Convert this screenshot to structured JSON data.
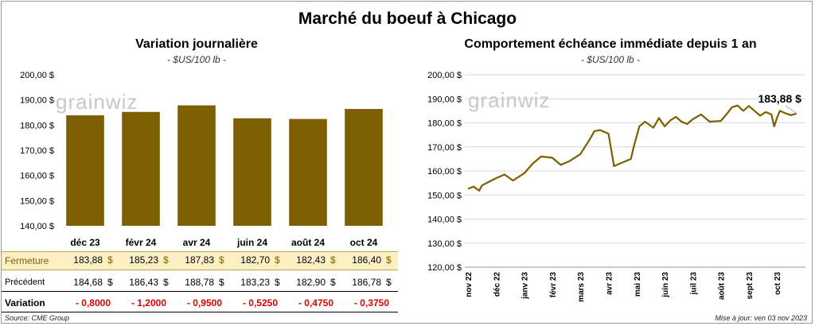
{
  "title": "Marché du boeuf à Chicago",
  "left_panel": {
    "title": "Variation  journalière",
    "subtitle": "- $US/100 lb -",
    "watermark": "grainwiz"
  },
  "right_panel": {
    "title": "Comportement  échéance immédiate depuis 1 an",
    "subtitle": "- $US/100 lb -",
    "watermark": "grainwiz",
    "last_label": "183,88 $"
  },
  "table": {
    "rows": [
      {
        "label": "Fermeture",
        "values": [
          "183,88",
          "185,23",
          "187,83",
          "182,70",
          "182,43",
          "186,40"
        ],
        "unit": "$"
      },
      {
        "label": "Précédent",
        "values": [
          "184,68",
          "186,43",
          "188,78",
          "183,23",
          "182,90",
          "186,78"
        ],
        "unit": "$"
      },
      {
        "label": "Variation",
        "values": [
          "- 0,8000",
          "- 1,2000",
          "- 0,9500",
          "- 0,5250",
          "- 0,4750",
          "- 0,3750"
        ],
        "unit": ""
      }
    ]
  },
  "footer": {
    "source": "Source: CME Group",
    "updated": "Mise à jour: ven 03 nov 2023"
  },
  "colors": {
    "bar": "#7d5e00",
    "line": "#7d5e00",
    "table_highlight": "#fdf0c4",
    "negative": "#e00000",
    "grid": "#d9d9d9"
  },
  "chart_data": [
    {
      "type": "bar",
      "categories": [
        "déc 23",
        "févr 24",
        "avr 24",
        "juin 24",
        "août 24",
        "oct 24"
      ],
      "values": [
        183.88,
        185.23,
        187.83,
        182.7,
        182.43,
        186.4
      ],
      "ylim": [
        140,
        200
      ],
      "yticks": [
        "140,00 $",
        "150,00 $",
        "160,00 $",
        "170,00 $",
        "180,00 $",
        "190,00 $",
        "200,00 $"
      ],
      "grid": false
    },
    {
      "type": "line",
      "x_ticks": [
        "nov 22",
        "déc 22",
        "janv 23",
        "févr 23",
        "mars 23",
        "avr 23",
        "mai 23",
        "juin 23",
        "juil 23",
        "août 23",
        "sept 23",
        "oct 23"
      ],
      "ylim": [
        120,
        200
      ],
      "yticks": [
        "120,00 $",
        "130,00 $",
        "140,00 $",
        "150,00 $",
        "160,00 $",
        "170,00 $",
        "180,00 $",
        "190,00 $",
        "200,00 $"
      ],
      "grid": true,
      "x": [
        0.0,
        0.2,
        0.4,
        0.5,
        0.7,
        1.0,
        1.3,
        1.6,
        2.0,
        2.3,
        2.6,
        3.0,
        3.3,
        3.6,
        4.0,
        4.3,
        4.5,
        4.7,
        5.0,
        5.2,
        5.5,
        5.8,
        5.9,
        6.1,
        6.3,
        6.6,
        6.8,
        7.0,
        7.2,
        7.4,
        7.6,
        7.8,
        8.0,
        8.3,
        8.6,
        9.0,
        9.2,
        9.4,
        9.6,
        9.8,
        10.0,
        10.2,
        10.4,
        10.6,
        10.8,
        10.9,
        11.0,
        11.1,
        11.3,
        11.5,
        11.7
      ],
      "values": [
        152.6,
        153.5,
        151.8,
        154.0,
        155.2,
        157.0,
        158.5,
        156.0,
        159.0,
        163.0,
        166.0,
        165.5,
        162.5,
        164.0,
        167.0,
        172.5,
        176.5,
        177.0,
        175.5,
        162.0,
        163.5,
        165.0,
        170.0,
        178.5,
        180.5,
        178.0,
        182.0,
        178.5,
        181.0,
        182.5,
        180.5,
        179.5,
        181.5,
        183.5,
        180.5,
        180.8,
        183.5,
        186.5,
        187.2,
        185.0,
        187.0,
        185.0,
        183.0,
        184.5,
        183.5,
        178.5,
        182.0,
        185.0,
        184.0,
        183.2,
        183.88
      ],
      "last_value": 183.88
    }
  ]
}
